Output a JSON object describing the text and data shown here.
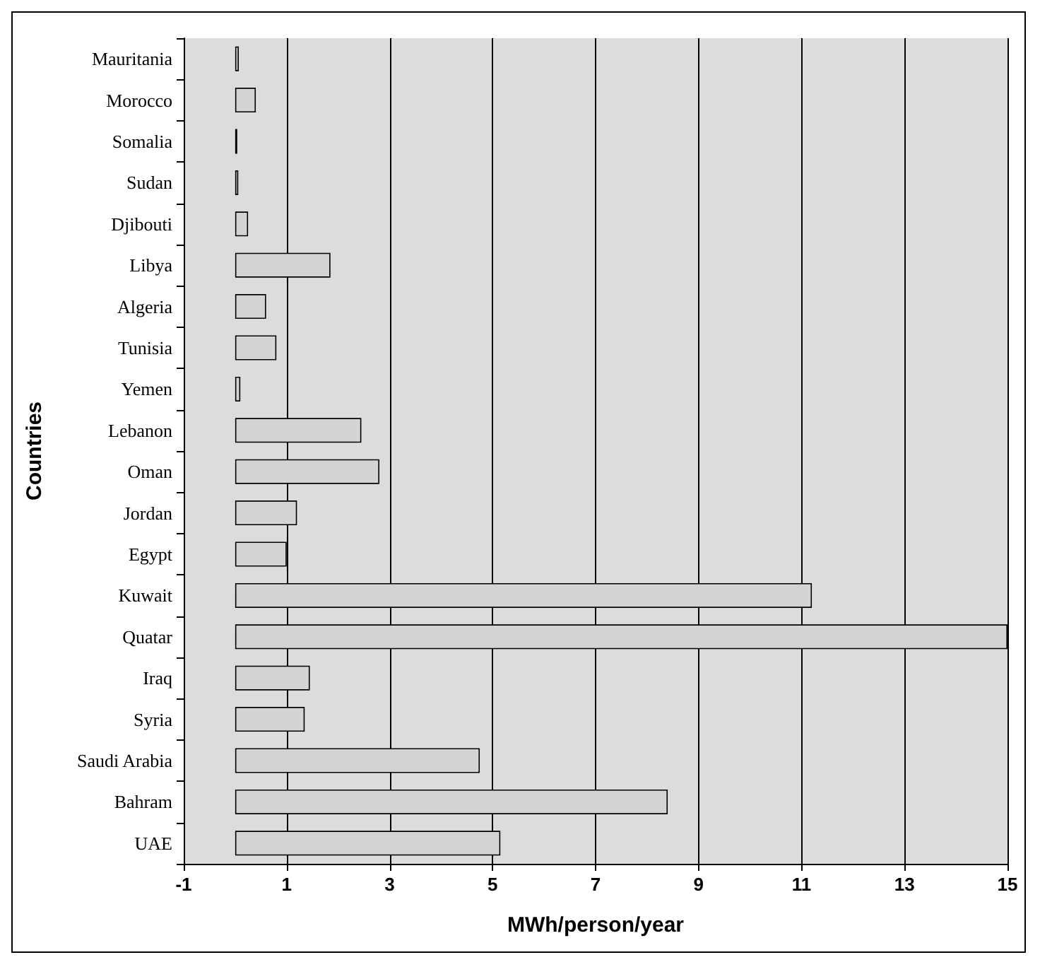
{
  "chart_data": {
    "type": "bar",
    "orientation": "horizontal",
    "xlabel": "MWh/person/year",
    "ylabel": "Countries",
    "categories": [
      "Mauritania",
      "Morocco",
      "Somalia",
      "Sudan",
      "Djibouti",
      "Libya",
      "Algeria",
      "Tunisia",
      "Yemen",
      "Lebanon",
      "Oman",
      "Jordan",
      "Egypt",
      "Kuwait",
      "Quatar",
      "Iraq",
      "Syria",
      "Saudi Arabia",
      "Bahram",
      "UAE"
    ],
    "values": [
      0.07,
      0.4,
      0.04,
      0.06,
      0.25,
      1.85,
      0.6,
      0.8,
      0.1,
      2.45,
      2.8,
      1.2,
      1.0,
      11.2,
      15,
      1.45,
      1.35,
      4.75,
      8.4,
      5.15
    ],
    "color": "#d4d4d4",
    "xlim": [
      -1,
      15
    ],
    "xticks": [
      -1,
      1,
      3,
      5,
      7,
      9,
      11,
      13,
      15
    ],
    "grid": "x"
  }
}
